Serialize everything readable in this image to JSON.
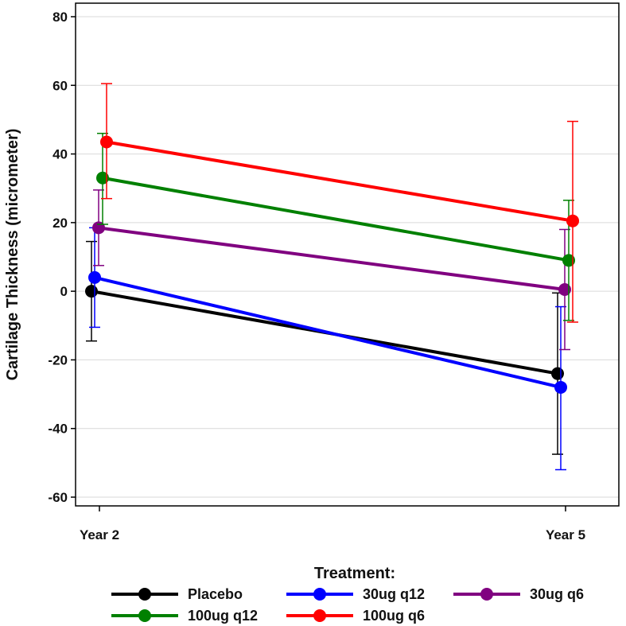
{
  "chart_data": {
    "type": "line",
    "title": "",
    "xlabel": "",
    "ylabel": "Cartilage Thickness (micrometer)",
    "categories": [
      "Year 2",
      "Year 5"
    ],
    "ylim": [
      -65,
      85
    ],
    "yticks": [
      80,
      60,
      40,
      20,
      0,
      -20,
      -40,
      -60
    ],
    "ytick_labels": [
      "80",
      "60",
      "40",
      "20",
      "0",
      "-20",
      "-40",
      "-60"
    ],
    "grid": true,
    "legend_title": "Treatment:",
    "legend_position": "bottom",
    "series": [
      {
        "name": "Placebo",
        "color": "#000000",
        "values": [
          0,
          -24
        ],
        "lower": [
          -14.5,
          -47.5
        ],
        "upper": [
          14.5,
          -0.5
        ]
      },
      {
        "name": "30ug q12",
        "color": "#0000ff",
        "values": [
          4,
          -28
        ],
        "lower": [
          -10.5,
          -52
        ],
        "upper": [
          18.5,
          -4.5
        ]
      },
      {
        "name": "30ug q6",
        "color": "#800080",
        "values": [
          18.5,
          0.5
        ],
        "lower": [
          7.5,
          -17
        ],
        "upper": [
          29.5,
          18
        ]
      },
      {
        "name": "100ug q12",
        "color": "#008000",
        "values": [
          33,
          9
        ],
        "lower": [
          19.5,
          -8.5
        ],
        "upper": [
          46,
          26.5
        ]
      },
      {
        "name": "100ug q6",
        "color": "#ff0000",
        "values": [
          43.5,
          20.5
        ],
        "lower": [
          27,
          -9
        ],
        "upper": [
          60.5,
          49.5
        ]
      }
    ]
  }
}
